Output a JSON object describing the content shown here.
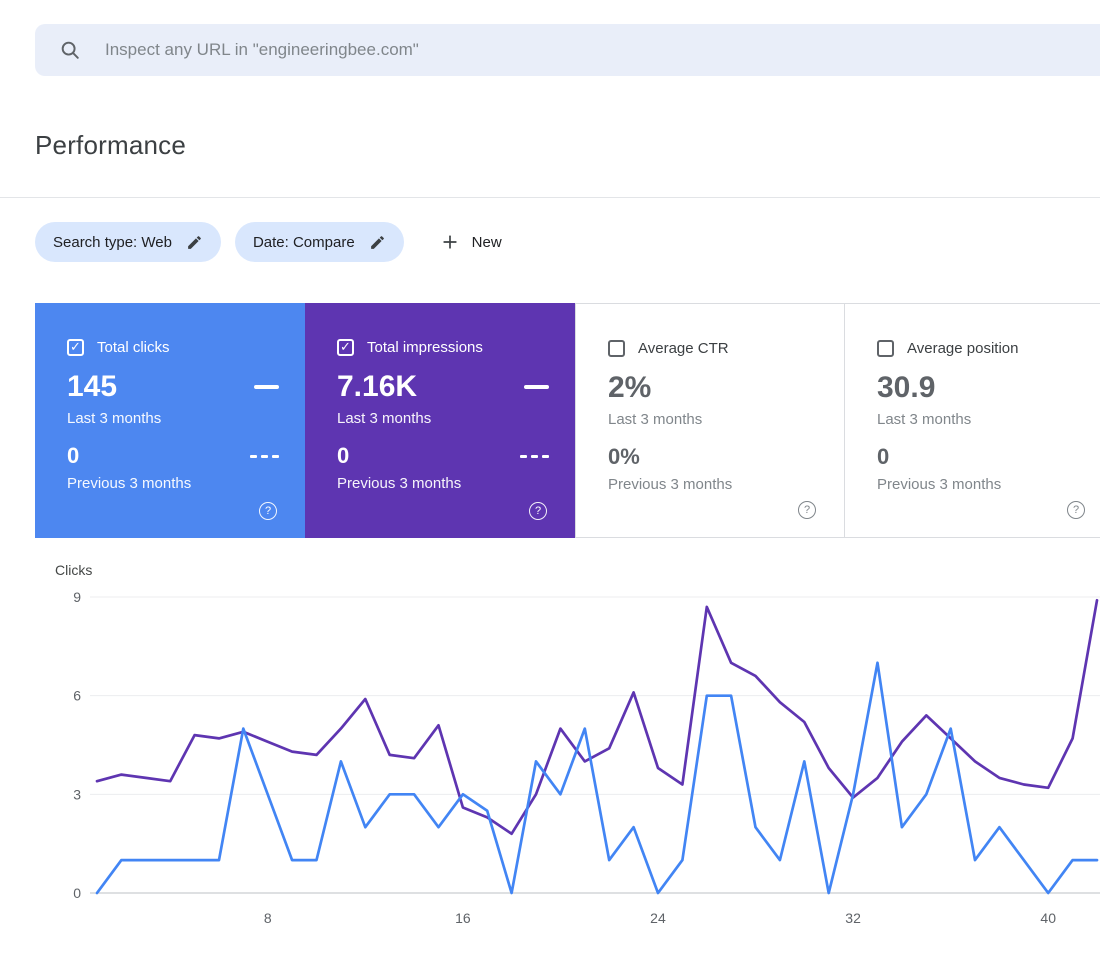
{
  "search_bar": {
    "placeholder": "Inspect any URL in \"engineeringbee.com\""
  },
  "page": {
    "title": "Performance"
  },
  "filters": {
    "chips": [
      {
        "label": "Search type: Web"
      },
      {
        "label": "Date: Compare"
      }
    ],
    "new_button": {
      "label": "New"
    }
  },
  "metric_cards": [
    {
      "label": "Total clicks",
      "checked": true,
      "value": "145",
      "period": "Last 3 months",
      "previous_value": "0",
      "previous_period": "Previous 3 months",
      "color": "#4d87f0"
    },
    {
      "label": "Total impressions",
      "checked": true,
      "value": "7.16K",
      "period": "Last 3 months",
      "previous_value": "0",
      "previous_period": "Previous 3 months",
      "color": "#5e35b1"
    },
    {
      "label": "Average CTR",
      "checked": false,
      "value": "2%",
      "period": "Last 3 months",
      "previous_value": "0%",
      "previous_period": "Previous 3 months",
      "color": "#ffffff"
    },
    {
      "label": "Average position",
      "checked": false,
      "value": "30.9",
      "period": "Last 3 months",
      "previous_value": "0",
      "previous_period": "Previous 3 months",
      "color": "#ffffff"
    }
  ],
  "icons": {
    "search_icon": "magnifier",
    "edit_icon": "pencil",
    "add_icon": "plus",
    "help_icon": "question-circle",
    "checked_checkbox_icon": "checkbox-with-check",
    "unchecked_checkbox_icon": "empty-checkbox",
    "solid_line_indicator": "solid-dash",
    "dashed_line_indicator": "three-dashes"
  },
  "chart_data": {
    "type": "line",
    "title": "",
    "ylabel": "Clicks",
    "xlabel": "",
    "ylim": [
      0,
      9
    ],
    "yticks": [
      0,
      3,
      6,
      9
    ],
    "xticks": [
      8,
      16,
      24,
      32,
      40
    ],
    "grid": true,
    "legend_position": "none",
    "x": [
      1,
      2,
      3,
      4,
      5,
      6,
      7,
      8,
      9,
      10,
      11,
      12,
      13,
      14,
      15,
      16,
      17,
      18,
      19,
      20,
      21,
      22,
      23,
      24,
      25,
      26,
      27,
      28,
      29,
      30,
      31,
      32,
      33,
      34,
      35,
      36,
      37,
      38,
      39,
      40,
      41,
      42
    ],
    "series": [
      {
        "name": "Total clicks (last 3 months)",
        "color": "#4285f4",
        "values": [
          0,
          1,
          1,
          1,
          1,
          1,
          5,
          3,
          1,
          1,
          4,
          2,
          3,
          3,
          2,
          3,
          2.5,
          0,
          4,
          3,
          5,
          1,
          2,
          0,
          1,
          6,
          6,
          2,
          1,
          4,
          0,
          3,
          7,
          2,
          3,
          5,
          1,
          2,
          1,
          0,
          1,
          1
        ]
      },
      {
        "name": "Total impressions (last 3 months, scaled to clicks axis)",
        "color": "#5e35b1",
        "values": [
          3.4,
          3.6,
          3.5,
          3.4,
          4.8,
          4.7,
          4.9,
          4.6,
          4.3,
          4.2,
          5.0,
          5.9,
          4.2,
          4.1,
          5.1,
          2.6,
          2.3,
          1.8,
          3.0,
          5.0,
          4.0,
          4.4,
          6.1,
          3.8,
          3.3,
          8.7,
          7.0,
          6.6,
          5.8,
          5.2,
          3.8,
          2.9,
          3.5,
          4.6,
          5.4,
          4.7,
          4.0,
          3.5,
          3.3,
          3.2,
          4.7,
          8.9
        ]
      }
    ]
  }
}
